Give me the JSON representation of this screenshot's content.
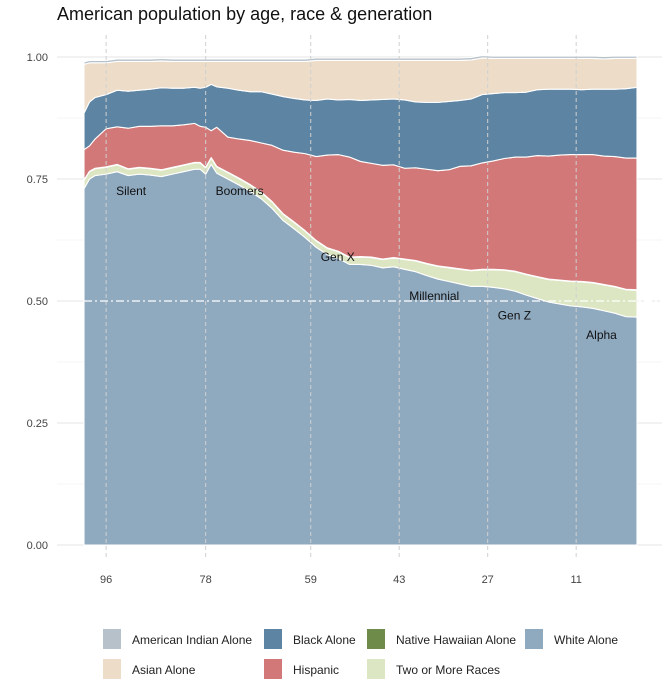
{
  "chart_data": {
    "type": "area",
    "title": "American population by age, race & generation",
    "xlabel": "",
    "ylabel": "",
    "x_axis_reversed": true,
    "xlim": [
      100,
      0
    ],
    "ylim": [
      0,
      1
    ],
    "grid": true,
    "y_ticks": [
      0,
      0.25,
      0.5,
      0.75,
      1
    ],
    "y_tick_labels": [
      "0.00",
      "0.25",
      "0.50",
      "0.75",
      "1.00"
    ],
    "x_ticks": [
      96,
      78,
      59,
      43,
      27,
      11
    ],
    "x_tick_labels": [
      "96",
      "78",
      "59",
      "43",
      "27",
      "11"
    ],
    "reference_line": {
      "y": 0.5,
      "style": "dash-dot"
    },
    "generation_boundaries": [
      96,
      78,
      59,
      43,
      27,
      11
    ],
    "x": [
      100,
      99,
      98,
      96,
      94,
      92,
      90,
      88,
      86,
      84,
      82,
      80,
      79,
      78,
      77,
      76,
      74,
      72,
      70,
      68,
      66,
      64,
      62,
      60,
      58,
      56,
      54,
      52,
      50,
      48,
      46,
      44,
      42,
      40,
      38,
      36,
      34,
      32,
      30,
      28,
      26,
      24,
      22,
      20,
      18,
      16,
      14,
      12,
      10,
      8,
      6,
      4,
      2,
      0
    ],
    "series": [
      {
        "name": "White Alone",
        "color": "#8fa9bf",
        "values": [
          0.73,
          0.75,
          0.757,
          0.76,
          0.765,
          0.757,
          0.76,
          0.758,
          0.755,
          0.76,
          0.765,
          0.77,
          0.77,
          0.76,
          0.78,
          0.762,
          0.75,
          0.738,
          0.725,
          0.71,
          0.69,
          0.665,
          0.648,
          0.63,
          0.61,
          0.595,
          0.587,
          0.575,
          0.575,
          0.573,
          0.568,
          0.57,
          0.565,
          0.56,
          0.552,
          0.545,
          0.54,
          0.535,
          0.53,
          0.53,
          0.528,
          0.525,
          0.52,
          0.512,
          0.505,
          0.498,
          0.494,
          0.49,
          0.488,
          0.485,
          0.48,
          0.475,
          0.468,
          0.467
        ]
      },
      {
        "name": "Two or More Races",
        "color": "#dde6c3",
        "values": [
          0.017,
          0.015,
          0.014,
          0.014,
          0.014,
          0.013,
          0.013,
          0.013,
          0.013,
          0.013,
          0.013,
          0.013,
          0.013,
          0.013,
          0.013,
          0.013,
          0.013,
          0.013,
          0.013,
          0.013,
          0.013,
          0.013,
          0.013,
          0.013,
          0.013,
          0.013,
          0.014,
          0.014,
          0.015,
          0.016,
          0.017,
          0.018,
          0.02,
          0.022,
          0.024,
          0.026,
          0.028,
          0.03,
          0.032,
          0.034,
          0.036,
          0.038,
          0.04,
          0.042,
          0.044,
          0.046,
          0.048,
          0.05,
          0.051,
          0.052,
          0.053,
          0.054,
          0.055,
          0.055
        ]
      },
      {
        "name": "Native Hawaiian Alone",
        "color": "#6e8b4a",
        "values": [
          0.001,
          0.001,
          0.001,
          0.001,
          0.001,
          0.001,
          0.001,
          0.001,
          0.001,
          0.001,
          0.001,
          0.001,
          0.001,
          0.001,
          0.001,
          0.001,
          0.001,
          0.001,
          0.001,
          0.001,
          0.001,
          0.001,
          0.001,
          0.001,
          0.001,
          0.001,
          0.001,
          0.001,
          0.001,
          0.001,
          0.001,
          0.001,
          0.001,
          0.001,
          0.001,
          0.001,
          0.001,
          0.001,
          0.001,
          0.001,
          0.001,
          0.001,
          0.001,
          0.001,
          0.001,
          0.001,
          0.001,
          0.001,
          0.001,
          0.001,
          0.001,
          0.001,
          0.001,
          0.001
        ]
      },
      {
        "name": "Hispanic",
        "color": "#d27878",
        "values": [
          0.062,
          0.052,
          0.06,
          0.078,
          0.077,
          0.083,
          0.084,
          0.086,
          0.09,
          0.085,
          0.082,
          0.08,
          0.074,
          0.082,
          0.055,
          0.08,
          0.072,
          0.08,
          0.09,
          0.1,
          0.115,
          0.13,
          0.143,
          0.158,
          0.172,
          0.19,
          0.198,
          0.205,
          0.195,
          0.192,
          0.192,
          0.19,
          0.186,
          0.19,
          0.193,
          0.195,
          0.2,
          0.21,
          0.214,
          0.218,
          0.222,
          0.228,
          0.234,
          0.24,
          0.248,
          0.252,
          0.256,
          0.259,
          0.26,
          0.262,
          0.263,
          0.266,
          0.269,
          0.27
        ]
      },
      {
        "name": "Black Alone",
        "color": "#5d84a2",
        "values": [
          0.075,
          0.09,
          0.085,
          0.07,
          0.075,
          0.076,
          0.074,
          0.076,
          0.078,
          0.077,
          0.075,
          0.074,
          0.078,
          0.082,
          0.095,
          0.083,
          0.1,
          0.1,
          0.1,
          0.105,
          0.105,
          0.11,
          0.11,
          0.11,
          0.115,
          0.115,
          0.112,
          0.118,
          0.125,
          0.13,
          0.135,
          0.135,
          0.14,
          0.135,
          0.137,
          0.14,
          0.14,
          0.135,
          0.137,
          0.14,
          0.138,
          0.135,
          0.132,
          0.133,
          0.135,
          0.137,
          0.135,
          0.134,
          0.133,
          0.134,
          0.137,
          0.138,
          0.142,
          0.145
        ]
      },
      {
        "name": "Asian Alone",
        "color": "#ecdcc8",
        "values": [
          0.1,
          0.08,
          0.071,
          0.065,
          0.059,
          0.061,
          0.059,
          0.057,
          0.055,
          0.055,
          0.055,
          0.053,
          0.055,
          0.053,
          0.047,
          0.052,
          0.055,
          0.059,
          0.062,
          0.062,
          0.067,
          0.072,
          0.076,
          0.079,
          0.082,
          0.079,
          0.081,
          0.08,
          0.082,
          0.081,
          0.08,
          0.079,
          0.081,
          0.085,
          0.086,
          0.086,
          0.084,
          0.082,
          0.08,
          0.075,
          0.072,
          0.07,
          0.07,
          0.069,
          0.064,
          0.063,
          0.063,
          0.063,
          0.064,
          0.063,
          0.062,
          0.063,
          0.062,
          0.059
        ]
      },
      {
        "name": "American Indian Alone",
        "color": "#b6c1c9",
        "values": [
          0.005,
          0.005,
          0.005,
          0.005,
          0.005,
          0.005,
          0.005,
          0.005,
          0.005,
          0.005,
          0.005,
          0.005,
          0.005,
          0.005,
          0.005,
          0.005,
          0.005,
          0.005,
          0.005,
          0.005,
          0.005,
          0.005,
          0.005,
          0.005,
          0.005,
          0.005,
          0.005,
          0.005,
          0.005,
          0.005,
          0.005,
          0.005,
          0.005,
          0.005,
          0.005,
          0.005,
          0.005,
          0.005,
          0.005,
          0.005,
          0.005,
          0.005,
          0.005,
          0.005,
          0.005,
          0.005,
          0.005,
          0.005,
          0.005,
          0.005,
          0.005,
          0.005,
          0.005,
          0.005
        ]
      }
    ],
    "annotations": [
      {
        "label": "Silent",
        "x": 96,
        "y": 0.725
      },
      {
        "label": "Boomers",
        "x": 78,
        "y": 0.725
      },
      {
        "label": "Gen X",
        "x": 59,
        "y": 0.59
      },
      {
        "label": "Millennial",
        "x": 43,
        "y": 0.51
      },
      {
        "label": "Gen Z",
        "x": 27,
        "y": 0.47
      },
      {
        "label": "Alpha",
        "x": 11,
        "y": 0.43
      }
    ],
    "legend": {
      "placement": "bottom",
      "rows": [
        [
          "American Indian Alone",
          "Black Alone",
          "Native Hawaiian Alone",
          "White Alone"
        ],
        [
          "Asian Alone",
          "Hispanic",
          "Two or More Races"
        ]
      ]
    }
  }
}
